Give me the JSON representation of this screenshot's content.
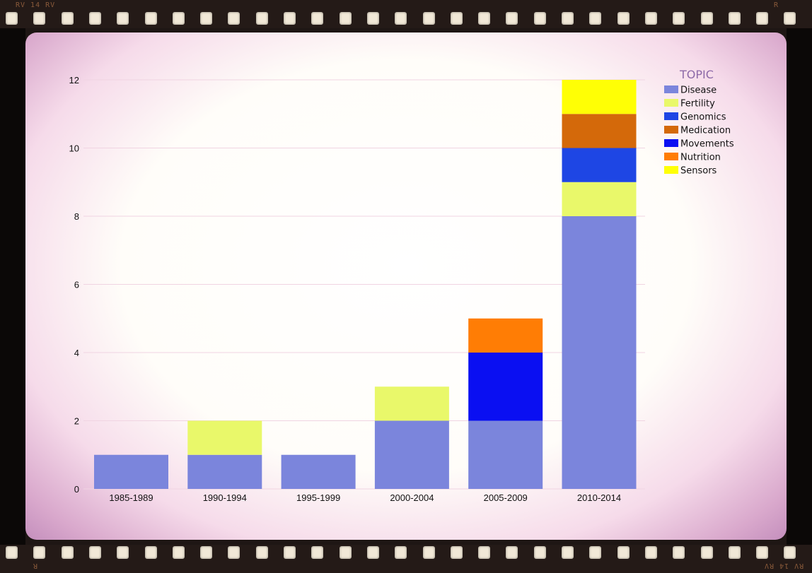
{
  "film": {
    "edge_code_top_left": "RV 14 RV",
    "edge_code_top_right": "R",
    "edge_code_bottom_left": "R",
    "edge_code_bottom_right": "RV 14 RV"
  },
  "chart_data": {
    "type": "bar",
    "stacked": true,
    "categories": [
      "1985-1989",
      "1990-1994",
      "1995-1999",
      "2000-2004",
      "2005-2009",
      "2010-2014"
    ],
    "series": [
      {
        "name": "Disease",
        "color": "#7b85dc",
        "values": [
          1,
          1,
          1,
          2,
          2,
          8
        ]
      },
      {
        "name": "Fertility",
        "color": "#e9f86a",
        "values": [
          0,
          1,
          0,
          1,
          0,
          1
        ]
      },
      {
        "name": "Genomics",
        "color": "#1e46e4",
        "values": [
          0,
          0,
          0,
          0,
          0,
          1
        ]
      },
      {
        "name": "Medication",
        "color": "#d4690a",
        "values": [
          0,
          0,
          0,
          0,
          0,
          1
        ]
      },
      {
        "name": "Movements",
        "color": "#0a0ff2",
        "values": [
          0,
          0,
          0,
          0,
          2,
          0
        ]
      },
      {
        "name": "Nutrition",
        "color": "#ff7d05",
        "values": [
          0,
          0,
          0,
          0,
          1,
          0
        ]
      },
      {
        "name": "Sensors",
        "color": "#ffff05",
        "values": [
          0,
          0,
          0,
          0,
          0,
          1
        ]
      }
    ],
    "yticks": [
      0,
      2,
      4,
      6,
      8,
      10,
      12
    ],
    "ylim": [
      0,
      12
    ],
    "legend": {
      "title": "TOPIC",
      "position": "top-right"
    },
    "grid": true
  }
}
